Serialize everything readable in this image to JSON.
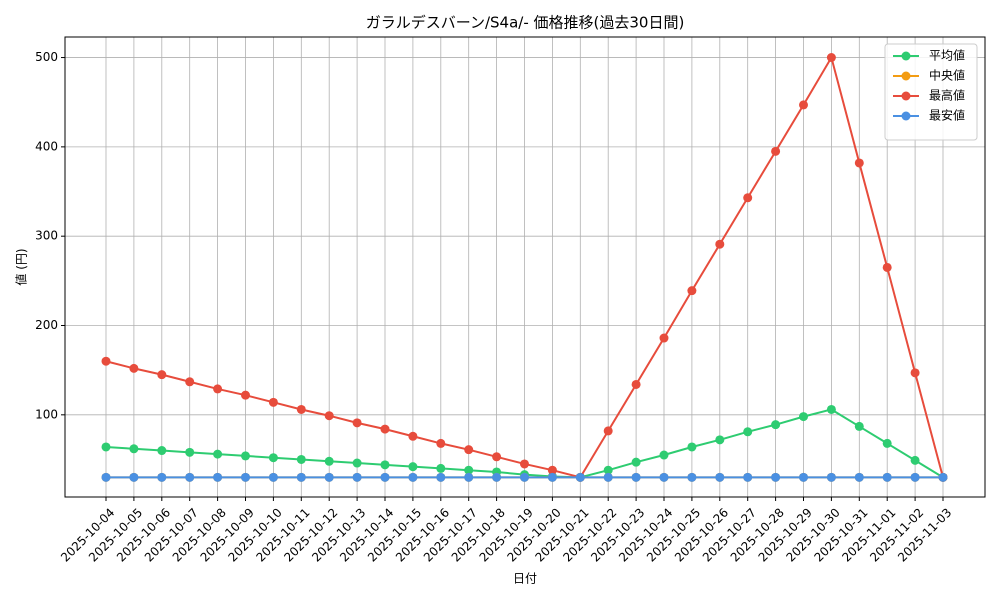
{
  "chart_data": {
    "type": "line",
    "title": "ガラルデスバーン/S4a/- 価格推移(過去30日間)",
    "x_label": "日付",
    "y_label": "値 (円)",
    "categories": [
      "2025-10-04",
      "2025-10-05",
      "2025-10-06",
      "2025-10-07",
      "2025-10-08",
      "2025-10-09",
      "2025-10-10",
      "2025-10-11",
      "2025-10-12",
      "2025-10-13",
      "2025-10-14",
      "2025-10-15",
      "2025-10-16",
      "2025-10-17",
      "2025-10-18",
      "2025-10-19",
      "2025-10-20",
      "2025-10-21",
      "2025-10-22",
      "2025-10-23",
      "2025-10-24",
      "2025-10-25",
      "2025-10-26",
      "2025-10-27",
      "2025-10-28",
      "2025-10-29",
      "2025-10-30",
      "2025-10-31",
      "2025-11-01",
      "2025-11-02",
      "2025-11-03"
    ],
    "series": [
      {
        "name": "平均値",
        "color": "#2ecc71",
        "values": [
          64,
          62,
          60,
          58,
          56,
          54,
          52,
          50,
          48,
          46,
          44,
          42,
          40,
          38,
          36,
          33,
          31,
          30,
          38,
          47,
          55,
          64,
          72,
          81,
          89,
          98,
          106,
          87,
          68,
          49,
          30
        ]
      },
      {
        "name": "中央値",
        "color": "#f39c12",
        "values": [
          30,
          30,
          30,
          30,
          30,
          30,
          30,
          30,
          30,
          30,
          30,
          30,
          30,
          30,
          30,
          30,
          30,
          30,
          30,
          30,
          30,
          30,
          30,
          30,
          30,
          30,
          30,
          30,
          30,
          30,
          30
        ]
      },
      {
        "name": "最高値",
        "color": "#e74c3c",
        "values": [
          160,
          152,
          145,
          137,
          129,
          122,
          114,
          106,
          99,
          91,
          84,
          76,
          68,
          61,
          53,
          45,
          38,
          30,
          82,
          134,
          186,
          239,
          291,
          343,
          395,
          447,
          500,
          382,
          265,
          147,
          30
        ]
      },
      {
        "name": "最安値",
        "color": "#4a90e2",
        "values": [
          30,
          30,
          30,
          30,
          30,
          30,
          30,
          30,
          30,
          30,
          30,
          30,
          30,
          30,
          30,
          30,
          30,
          30,
          30,
          30,
          30,
          30,
          30,
          30,
          30,
          30,
          30,
          30,
          30,
          30,
          30
        ]
      }
    ],
    "ylim": [
      8,
      523
    ],
    "yticks": [
      100,
      200,
      300,
      400,
      500
    ],
    "grid": true,
    "legend": "upper right"
  }
}
